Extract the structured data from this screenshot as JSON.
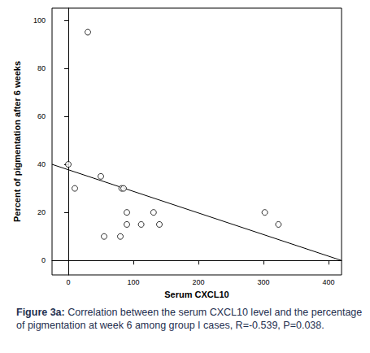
{
  "chart_data": {
    "type": "scatter",
    "x_label": "Serum CXCL10",
    "y_label": "Percent of pigmentation after 6 weeks",
    "caption_label": "Figure 3a:",
    "caption": "Correlation between the serum CXCL10 level and the percentage of pigmentation at week 6 among group I cases, R=-0.539, P=0.038.",
    "x": [
      30,
      0,
      10,
      50,
      55,
      80,
      82,
      85,
      90,
      90,
      112,
      131,
      140,
      302,
      323
    ],
    "values": [
      95,
      40,
      30,
      35,
      10,
      10,
      30,
      30,
      20,
      15,
      15,
      20,
      15,
      20,
      15
    ],
    "color": "#000000",
    "marker": "circle_open",
    "fit_line": {
      "x": [
        -25,
        420
      ],
      "y": [
        40,
        0
      ],
      "line_style": "solid",
      "color": "#000000"
    },
    "xlim": [
      -25,
      420
    ],
    "xticks": [
      0,
      100,
      200,
      300,
      400
    ],
    "ylim": [
      -6,
      105
    ],
    "yticks": [
      0,
      20,
      40,
      60,
      80,
      100
    ],
    "grid": false
  }
}
